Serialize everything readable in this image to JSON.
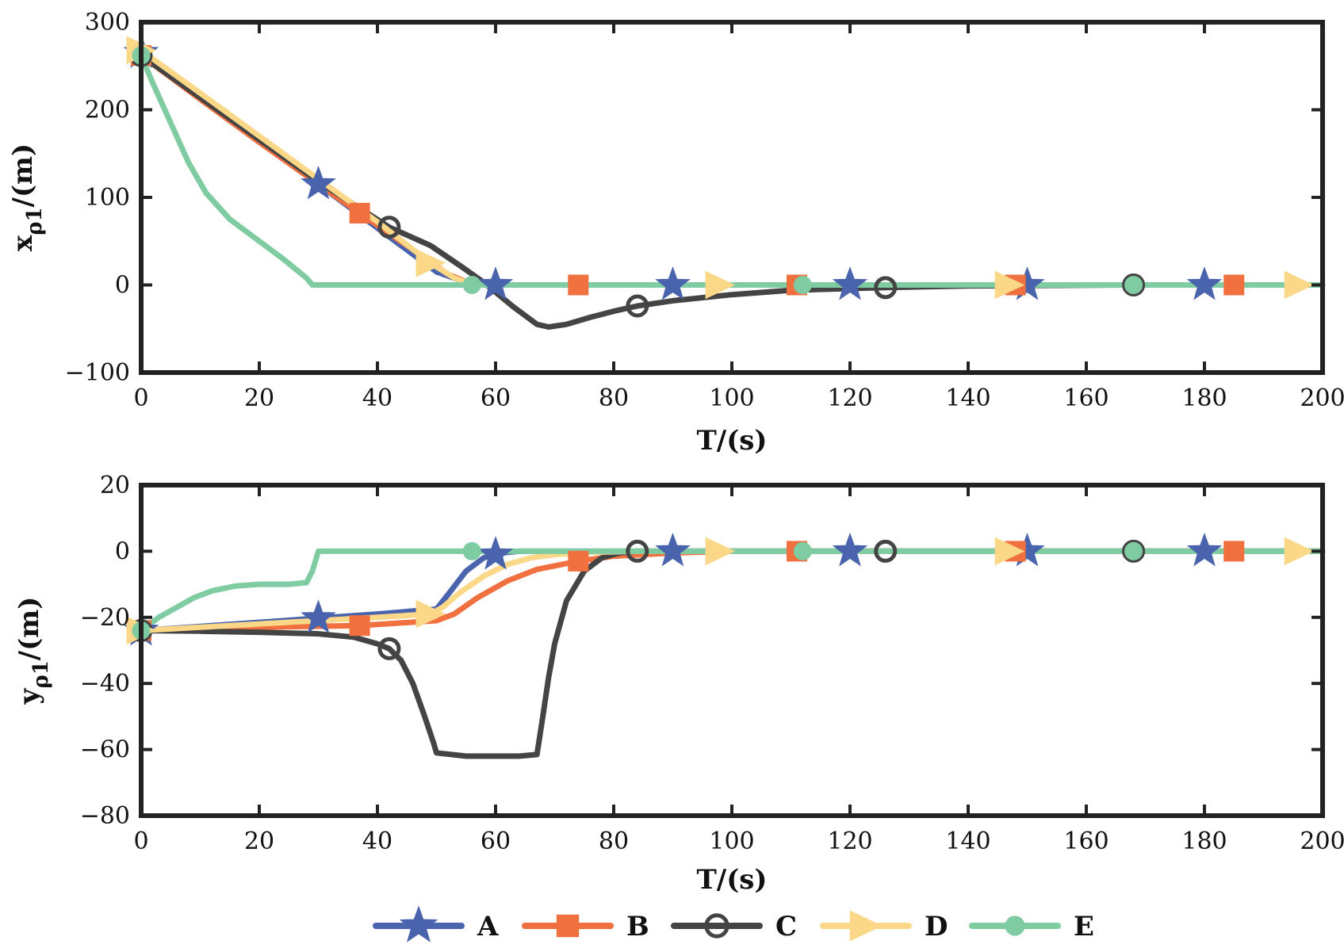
{
  "colors": {
    "A": "#4A63AD",
    "B": "#F07040",
    "C": "#444444",
    "D": "#FAD888",
    "E": "#7FCCA2",
    "frame": "#222222"
  },
  "legend": [
    {
      "name": "A",
      "marker": "star"
    },
    {
      "name": "B",
      "marker": "square"
    },
    {
      "name": "C",
      "marker": "circle-open"
    },
    {
      "name": "D",
      "marker": "triangle-right"
    },
    {
      "name": "E",
      "marker": "circle-filled"
    }
  ],
  "chart_data": [
    {
      "type": "line",
      "id": "x",
      "xlabel": "T/(s)",
      "ylabel_main": "x",
      "ylabel_sub": "ρ1",
      "ylabel_rest": "/(m)",
      "xlim": [
        0,
        200
      ],
      "ylim": [
        -100,
        300
      ],
      "xticks": [
        0,
        20,
        40,
        60,
        80,
        100,
        120,
        140,
        160,
        180,
        200
      ],
      "yticks": [
        -100,
        0,
        100,
        200,
        300
      ],
      "xtick_labels": [
        "0",
        "20",
        "40",
        "60",
        "80",
        "100",
        "120",
        "140",
        "160",
        "180",
        "200"
      ],
      "ytick_labels": [
        "−100",
        "0",
        "100",
        "200",
        "300"
      ],
      "series": [
        {
          "name": "A",
          "marker": "star",
          "x": [
            0,
            10,
            20,
            30,
            40,
            50,
            55,
            58,
            60,
            80,
            100,
            150,
            200
          ],
          "y": [
            265,
            215,
            165,
            115,
            65,
            15,
            3,
            0,
            0,
            0,
            0,
            0,
            0
          ],
          "marker_x": [
            0,
            30,
            60,
            90,
            120,
            150,
            180
          ]
        },
        {
          "name": "B",
          "marker": "square",
          "x": [
            0,
            10,
            20,
            30,
            37,
            45,
            52,
            56,
            60,
            80,
            100,
            150,
            200
          ],
          "y": [
            262,
            212,
            163,
            115,
            82,
            45,
            12,
            1,
            0,
            0,
            0,
            0,
            0
          ],
          "marker_x": [
            0,
            37,
            74,
            111,
            148,
            185
          ]
        },
        {
          "name": "C",
          "marker": "circle-open",
          "x": [
            0,
            10,
            20,
            30,
            42,
            49,
            54,
            58,
            63,
            67,
            69,
            72,
            76,
            80,
            84,
            90,
            100,
            110,
            126,
            140,
            168,
            200
          ],
          "y": [
            262,
            214,
            166,
            118,
            66,
            45,
            22,
            3,
            -25,
            -45,
            -48,
            -45,
            -37,
            -30,
            -24,
            -18,
            -11,
            -6,
            -3,
            -1,
            0,
            0
          ],
          "marker_x": [
            0,
            42,
            84,
            126,
            168
          ]
        },
        {
          "name": "D",
          "marker": "triangle-right",
          "x": [
            0,
            10,
            20,
            30,
            40,
            49,
            53,
            56,
            60,
            80,
            100,
            150,
            200
          ],
          "y": [
            268,
            219,
            170,
            121,
            72,
            25,
            8,
            1,
            0,
            0,
            0,
            0,
            0
          ],
          "marker_x": [
            0,
            49,
            98,
            147,
            196
          ]
        },
        {
          "name": "E",
          "marker": "circle-filled",
          "x": [
            0,
            2,
            5,
            8,
            11,
            15,
            20,
            24,
            28,
            29,
            35,
            56,
            80,
            112,
            168,
            200
          ],
          "y": [
            262,
            230,
            185,
            140,
            105,
            75,
            50,
            30,
            8,
            0,
            0,
            0,
            0,
            0,
            0,
            0
          ],
          "marker_x": [
            0,
            56,
            112,
            168
          ]
        }
      ]
    },
    {
      "type": "line",
      "id": "y",
      "xlabel": "T/(s)",
      "ylabel_main": "y",
      "ylabel_sub": "ρ1",
      "ylabel_rest": "/(m)",
      "xlim": [
        0,
        200
      ],
      "ylim": [
        -80,
        20
      ],
      "xticks": [
        0,
        20,
        40,
        60,
        80,
        100,
        120,
        140,
        160,
        180,
        200
      ],
      "yticks": [
        -80,
        -60,
        -40,
        -20,
        0,
        20
      ],
      "xtick_labels": [
        "0",
        "20",
        "40",
        "60",
        "80",
        "100",
        "120",
        "140",
        "160",
        "180",
        "200"
      ],
      "ytick_labels": [
        "−80",
        "−60",
        "−40",
        "−20",
        "0",
        "20"
      ],
      "series": [
        {
          "name": "A",
          "marker": "star",
          "x": [
            0,
            20,
            40,
            50,
            52,
            55,
            58,
            61,
            64,
            68,
            100,
            200
          ],
          "y": [
            -24,
            -21.5,
            -19,
            -17.5,
            -13,
            -6,
            -2,
            -0.5,
            0,
            0,
            0,
            0
          ],
          "marker_x": [
            0,
            30,
            60,
            90,
            120,
            150,
            180
          ]
        },
        {
          "name": "B",
          "marker": "square",
          "x": [
            0,
            20,
            37,
            50,
            53,
            57,
            62,
            67,
            74,
            80,
            90,
            100,
            200
          ],
          "y": [
            -24,
            -23,
            -22.5,
            -21,
            -19,
            -14,
            -9,
            -5.5,
            -3,
            -1.5,
            -0.5,
            0,
            0
          ],
          "marker_x": [
            0,
            37,
            74,
            111,
            148,
            185
          ]
        },
        {
          "name": "C",
          "marker": "circle-open",
          "x": [
            0,
            10,
            20,
            30,
            36,
            40,
            42,
            44,
            46,
            48,
            49.5,
            50,
            55,
            60,
            64,
            67,
            68,
            69,
            70,
            72,
            75,
            78,
            81,
            84,
            90,
            100,
            200
          ],
          "y": [
            -24,
            -24.2,
            -24.5,
            -25,
            -26,
            -28,
            -29.5,
            -33,
            -40,
            -50,
            -58,
            -61,
            -62,
            -62,
            -62,
            -61.5,
            -50,
            -38,
            -28,
            -15,
            -6,
            -2,
            -0.5,
            0,
            0,
            0,
            0
          ],
          "marker_x": [
            0,
            42,
            84,
            126,
            168
          ]
        },
        {
          "name": "D",
          "marker": "triangle-right",
          "x": [
            0,
            20,
            40,
            49,
            51,
            54,
            58,
            62,
            66,
            70,
            76,
            85,
            100,
            200
          ],
          "y": [
            -24,
            -22,
            -20,
            -19,
            -17,
            -12.5,
            -7.5,
            -4,
            -2,
            -1,
            -0.3,
            0,
            0,
            0
          ],
          "marker_x": [
            0,
            49,
            98,
            147,
            196
          ]
        },
        {
          "name": "E",
          "marker": "circle-filled",
          "x": [
            0,
            3,
            6,
            9,
            12,
            16,
            20,
            25,
            28,
            29,
            30,
            35,
            56,
            112,
            168,
            200
          ],
          "y": [
            -24,
            -20,
            -17,
            -14,
            -12,
            -10.5,
            -10,
            -10,
            -9.5,
            -6,
            0,
            0,
            0,
            0,
            0,
            0
          ],
          "marker_x": [
            0,
            56,
            112,
            168
          ]
        }
      ]
    }
  ]
}
